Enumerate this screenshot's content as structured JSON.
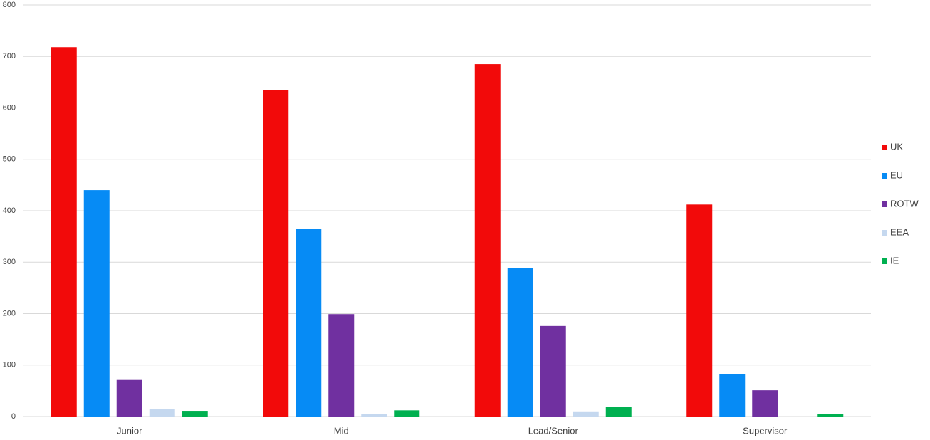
{
  "chart_data": {
    "type": "bar",
    "categories": [
      "Junior",
      "Mid",
      "Lead/Senior",
      "Supervisor"
    ],
    "series": [
      {
        "name": "UK",
        "color": "#f20a0a",
        "values": [
          718,
          634,
          685,
          412
        ]
      },
      {
        "name": "EU",
        "color": "#068bf5",
        "values": [
          440,
          365,
          289,
          82
        ]
      },
      {
        "name": "ROTW",
        "color": "#7030a0",
        "values": [
          71,
          199,
          176,
          51
        ]
      },
      {
        "name": "EEA",
        "color": "#c5d8ef",
        "values": [
          15,
          5,
          10,
          0
        ]
      },
      {
        "name": "IE",
        "color": "#00b050",
        "values": [
          11,
          12,
          19,
          5
        ]
      }
    ],
    "ylim": [
      0,
      800
    ],
    "yticks": [
      0,
      100,
      200,
      300,
      400,
      500,
      600,
      700,
      800
    ],
    "grid": true,
    "legend": "right"
  }
}
